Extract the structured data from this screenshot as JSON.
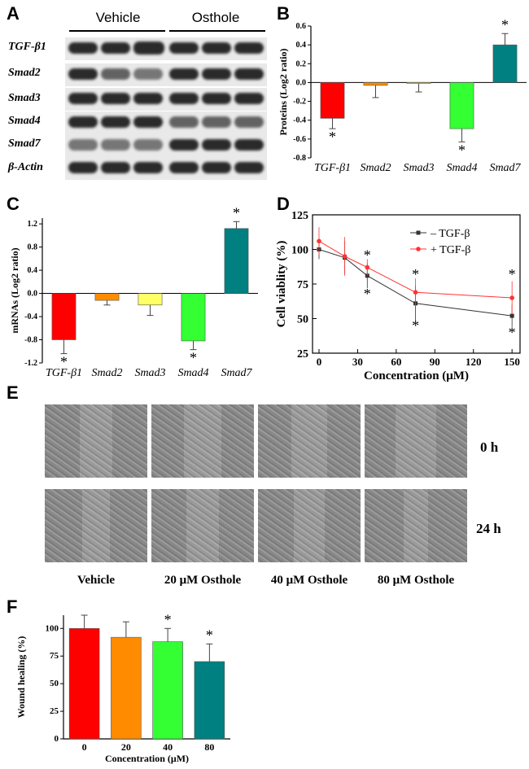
{
  "panel_letters": {
    "a": "A",
    "b": "B",
    "c": "C",
    "d": "D",
    "e": "E",
    "f": "F"
  },
  "western_blot": {
    "groups": [
      "Vehicle",
      "Osthole"
    ],
    "proteins": [
      "TGF-β1",
      "Smad2",
      "Smad3",
      "Smad4",
      "Smad7",
      "β-Actin"
    ]
  },
  "chart_data": [
    {
      "panel": "B",
      "type": "bar",
      "categories": [
        "TGF-β1",
        "Smad2",
        "Smad3",
        "Smad4",
        "Smad7"
      ],
      "values": [
        -0.38,
        -0.03,
        -0.01,
        -0.49,
        0.4
      ],
      "errors": [
        0.11,
        0.13,
        0.09,
        0.14,
        0.12
      ],
      "significant": [
        "*",
        "",
        "",
        "*",
        "*"
      ],
      "colors": [
        "#ff0000",
        "#ff8c00",
        "#ffff66",
        "#33ff33",
        "#008080"
      ],
      "ylabel": "Proteins (Log2 ratio)",
      "ylim": [
        -0.8,
        0.6
      ],
      "yticks": [
        "0.6",
        "0.4",
        "0.2",
        "0.0",
        "-0.2",
        "-0.4",
        "-0.6",
        "-0.8"
      ]
    },
    {
      "panel": "C",
      "type": "bar",
      "categories": [
        "TGF-β1",
        "Smad2",
        "Smad3",
        "Smad4",
        "Smad7"
      ],
      "values": [
        -0.8,
        -0.12,
        -0.2,
        -0.82,
        1.12
      ],
      "errors": [
        0.24,
        0.08,
        0.18,
        0.15,
        0.12
      ],
      "significant": [
        "*",
        "",
        "",
        "*",
        "*"
      ],
      "colors": [
        "#ff0000",
        "#ff8c00",
        "#ffff66",
        "#33ff33",
        "#008080"
      ],
      "ylabel": "mRNAs (Log2 ratio)",
      "ylim": [
        -1.2,
        1.3
      ],
      "yticks": [
        "1.2",
        "0.8",
        "0.4",
        "0.0",
        "-0.4",
        "-0.8",
        "-1.2"
      ]
    },
    {
      "panel": "D",
      "type": "line",
      "xlabel": "Concentration (μM)",
      "ylabel": "Cell viablity (%)",
      "xlim": [
        0,
        150
      ],
      "ylim": [
        25,
        125
      ],
      "xticks": [
        "0",
        "30",
        "60",
        "90",
        "120",
        "150"
      ],
      "yticks": [
        "125",
        "100",
        "75",
        "50",
        "25"
      ],
      "series": [
        {
          "name": "– TGF-β",
          "color": "#333333",
          "x": [
            0,
            20,
            37.5,
            75,
            150
          ],
          "y": [
            100,
            94,
            81,
            61,
            52
          ],
          "err": [
            7,
            12,
            9,
            13,
            8
          ]
        },
        {
          "name": "+ TGF-β",
          "color": "#ff3333",
          "x": [
            0,
            20,
            37.5,
            75,
            150
          ],
          "y": [
            106,
            95,
            87,
            69,
            65
          ],
          "err": [
            10,
            14,
            6,
            10,
            12
          ]
        }
      ],
      "significant": [
        "*",
        "*",
        "*",
        "*",
        "*",
        "*"
      ]
    },
    {
      "panel": "F",
      "type": "bar",
      "categories": [
        "0",
        "20",
        "40",
        "80"
      ],
      "values": [
        100,
        92,
        88,
        70
      ],
      "errors": [
        12,
        14,
        12,
        16
      ],
      "significant": [
        "",
        "",
        "*",
        "*"
      ],
      "colors": [
        "#ff0000",
        "#ff8c00",
        "#33ff33",
        "#008080"
      ],
      "ylabel": "Wound healing (%)",
      "xlabel": "Concentration (μM)",
      "ylim": [
        0,
        112
      ],
      "yticks": [
        "100",
        "75",
        "50",
        "25",
        "0"
      ]
    }
  ],
  "wound_assay": {
    "time_labels": [
      "0 h",
      "24 h"
    ],
    "conditions": [
      "Vehicle",
      "20 μM Osthole",
      "40 μM Osthole",
      "80 μM Osthole"
    ]
  }
}
